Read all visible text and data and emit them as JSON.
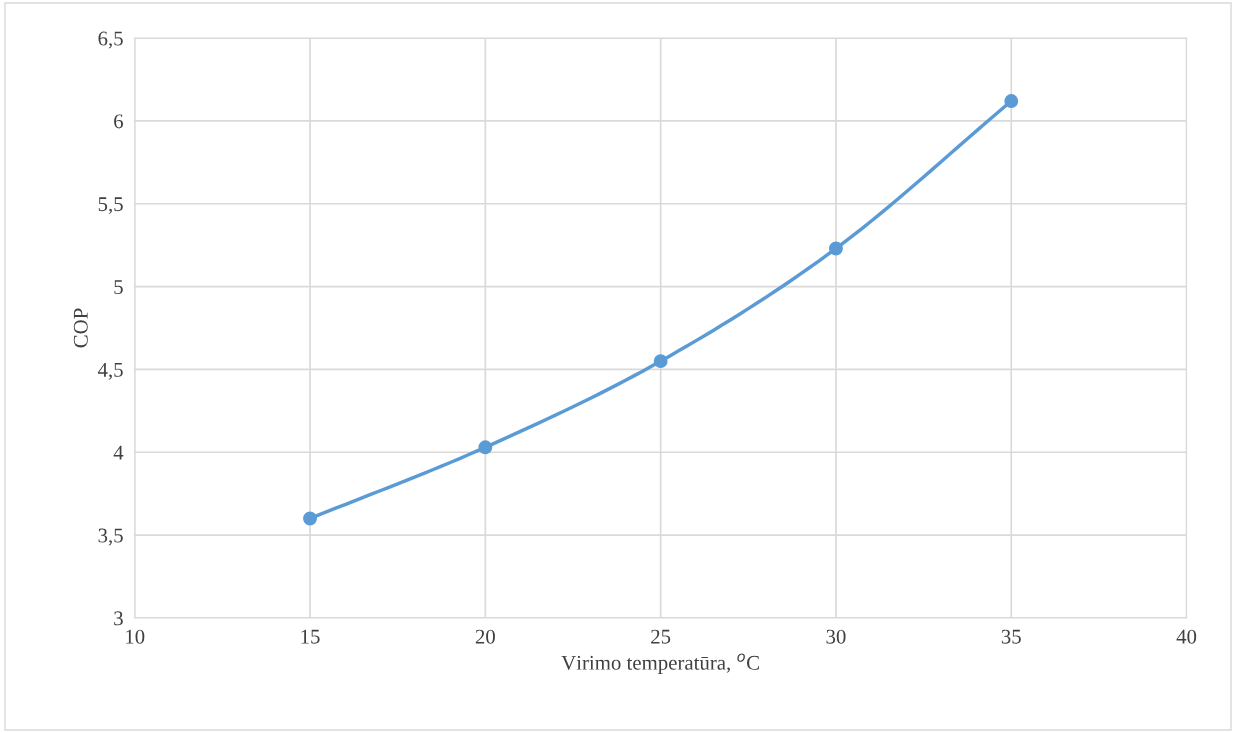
{
  "chart_data": {
    "type": "line",
    "xlabel": "Virimo temperatūra, $^{o}$C",
    "ylabel": "COP",
    "x": [
      15,
      20,
      25,
      30,
      35
    ],
    "series": [
      {
        "color": "#5b9bd5",
        "values": [
          3.6,
          4.03,
          4.55,
          5.23,
          6.12
        ]
      }
    ],
    "xlim": [
      10,
      40
    ],
    "xticks": [
      10,
      15,
      20,
      25,
      30,
      35,
      40
    ],
    "ylim": [
      3,
      6.5
    ],
    "yticks": [
      3,
      {
        "value": 3.5,
        "label": "3,5"
      },
      4,
      {
        "value": 4.5,
        "label": "4,5"
      },
      5,
      {
        "value": 5.5,
        "label": "5,5"
      },
      6,
      {
        "value": 6.5,
        "label": "6,5"
      }
    ],
    "grid": true,
    "marker": "circle",
    "line_style": "solid"
  }
}
